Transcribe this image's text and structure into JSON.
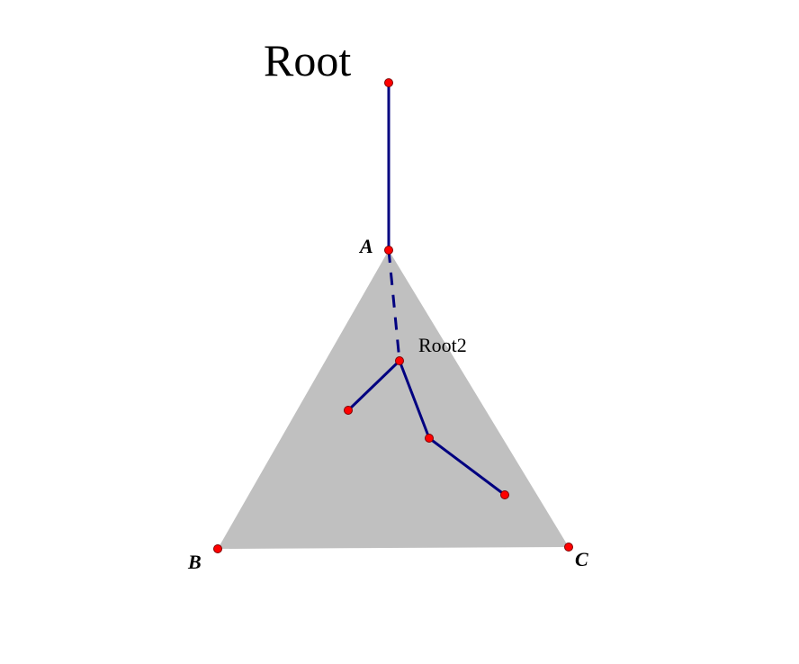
{
  "labels": {
    "root": "Root",
    "root2": "Root2",
    "a": "A",
    "b": "B",
    "c": "C"
  },
  "colors": {
    "triangle_fill": "#c0c0c0",
    "edge": "#000080",
    "point_fill": "#ff0000",
    "point_stroke": "#800000",
    "text": "#000000"
  }
}
